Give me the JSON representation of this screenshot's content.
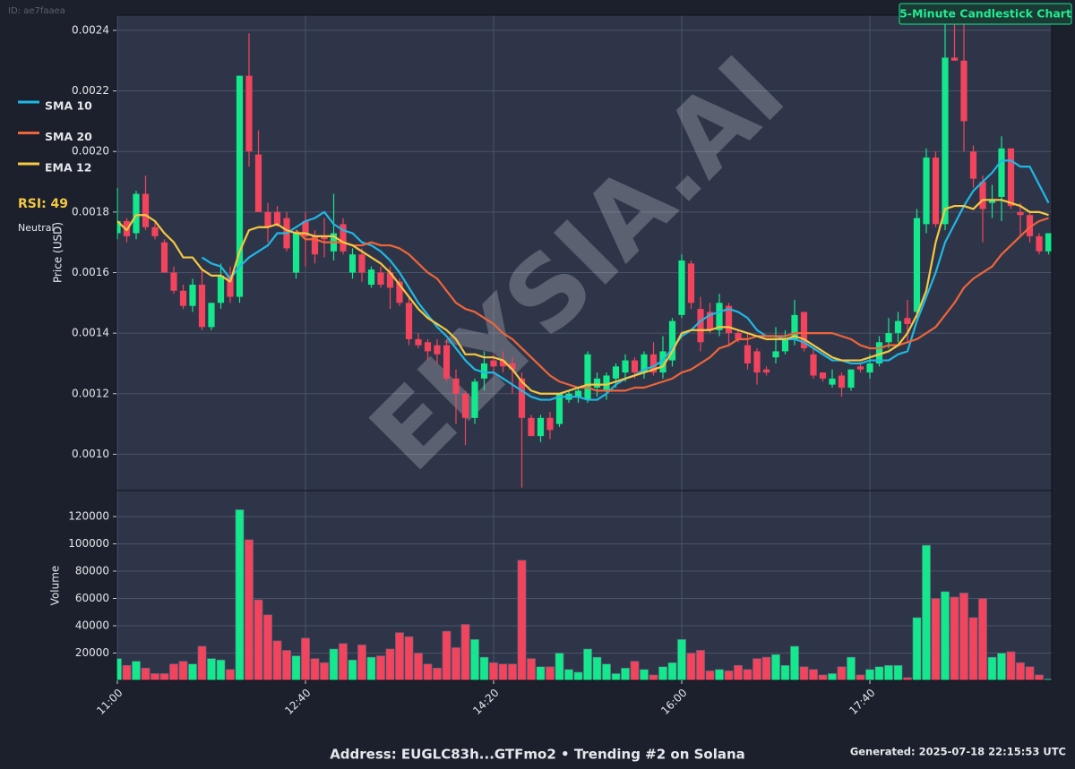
{
  "page": {
    "id_label": "ID: ae7faaea",
    "badge": "5-Minute Candlestick Chart",
    "watermark": "ELYSIA.AI",
    "rsi_label": "RSI: 49",
    "rsi_state": "Neutral",
    "footer": "Address: EUGLC83h...GTFmo2 • Trending #2 on Solana",
    "generated": "Generated: 2025-07-18 22:15:53 UTC"
  },
  "chart_data": [
    {
      "type": "candlestick",
      "y_label": "Price (USD)",
      "categories": [
        "11:00",
        null,
        null,
        null,
        null,
        null,
        null,
        null,
        null,
        null,
        null,
        null,
        null,
        null,
        null,
        null,
        null,
        null,
        null,
        null,
        "12:40",
        null,
        null,
        null,
        null,
        null,
        null,
        null,
        null,
        null,
        null,
        null,
        null,
        null,
        null,
        null,
        null,
        null,
        null,
        null,
        "14:20",
        null,
        null,
        null,
        null,
        null,
        null,
        null,
        null,
        null,
        null,
        null,
        null,
        null,
        null,
        null,
        null,
        null,
        null,
        null,
        "16:00",
        null,
        null,
        null,
        null,
        null,
        null,
        null,
        null,
        null,
        null,
        null,
        null,
        null,
        null,
        null,
        null,
        null,
        null,
        null,
        "17:40",
        null,
        null,
        null,
        null,
        null,
        null,
        null,
        null,
        null,
        null,
        null,
        null,
        null,
        null,
        null,
        null,
        null,
        null,
        null
      ],
      "open": [
        0.00173,
        0.00177,
        0.00173,
        0.00186,
        0.00175,
        0.0017,
        0.0016,
        0.00154,
        0.00149,
        0.00156,
        0.00142,
        0.0015,
        0.00159,
        0.00152,
        0.00225,
        0.00199,
        0.0018,
        0.0018,
        0.00178,
        0.0016,
        0.00177,
        0.00172,
        0.00172,
        0.00167,
        0.00176,
        0.0016,
        0.00166,
        0.00156,
        0.0016,
        0.0016,
        0.00157,
        0.0015,
        0.00138,
        0.00137,
        0.00136,
        0.00136,
        0.00125,
        0.0012,
        0.00112,
        0.00125,
        0.00131,
        0.00131,
        0.0013,
        0.00125,
        0.00112,
        0.00106,
        0.00112,
        0.0011,
        0.00118,
        0.00119,
        0.00118,
        0.00122,
        0.00121,
        0.00125,
        0.00127,
        0.00131,
        0.00127,
        0.00133,
        0.00127,
        0.00131,
        0.00146,
        0.00163,
        0.00148,
        0.00147,
        0.00141,
        0.00149,
        0.0014,
        0.00136,
        0.00134,
        0.00128,
        0.00132,
        0.00134,
        0.00138,
        0.00147,
        0.00133,
        0.00127,
        0.00123,
        0.00126,
        0.00122,
        0.00129,
        0.00127,
        0.0013,
        0.00137,
        0.0014,
        0.00145,
        0.00147,
        0.00176,
        0.00198,
        0.00176,
        0.00231,
        0.0023,
        0.002,
        0.0019,
        0.00183,
        0.00185,
        0.00201,
        0.0018,
        0.00179,
        0.00172,
        0.00167
      ],
      "high": [
        0.00188,
        0.00178,
        0.00187,
        0.00192,
        0.00177,
        0.00171,
        0.00162,
        0.00156,
        0.00158,
        0.00161,
        0.0015,
        0.00163,
        0.00162,
        0.00225,
        0.00239,
        0.00207,
        0.00183,
        0.00182,
        0.0018,
        0.00174,
        0.0018,
        0.00174,
        0.00178,
        0.00186,
        0.00178,
        0.00168,
        0.00168,
        0.00162,
        0.00162,
        0.00162,
        0.00158,
        0.00152,
        0.0014,
        0.00138,
        0.00138,
        0.00138,
        0.00128,
        0.00121,
        0.00125,
        0.00134,
        0.00133,
        0.00134,
        0.00132,
        0.00127,
        0.00113,
        0.00113,
        0.00114,
        0.0012,
        0.00121,
        0.00122,
        0.00134,
        0.00127,
        0.00127,
        0.0013,
        0.00133,
        0.00132,
        0.00134,
        0.00137,
        0.00139,
        0.00145,
        0.00166,
        0.00164,
        0.00152,
        0.0015,
        0.00153,
        0.0015,
        0.00141,
        0.0014,
        0.00135,
        0.00129,
        0.00142,
        0.00141,
        0.00151,
        0.00147,
        0.00135,
        0.00127,
        0.00128,
        0.00127,
        0.00128,
        0.0013,
        0.00133,
        0.00139,
        0.00145,
        0.00147,
        0.00151,
        0.00181,
        0.00201,
        0.002,
        0.00244,
        0.00252,
        0.00242,
        0.00202,
        0.00192,
        0.00189,
        0.00205,
        0.00201,
        0.00183,
        0.0018,
        0.00173,
        0.00173
      ],
      "low": [
        0.00171,
        0.0017,
        0.00171,
        0.00174,
        0.00171,
        0.0016,
        0.00153,
        0.00148,
        0.00147,
        0.00141,
        0.00141,
        0.00148,
        0.0015,
        0.0015,
        0.00195,
        0.0018,
        0.0017,
        0.00175,
        0.00167,
        0.00158,
        0.00162,
        0.00163,
        0.00165,
        0.00164,
        0.00166,
        0.00158,
        0.00157,
        0.00155,
        0.00155,
        0.00148,
        0.00149,
        0.00136,
        0.00135,
        0.00131,
        0.0013,
        0.00124,
        0.0011,
        0.00103,
        0.0011,
        0.00121,
        0.00126,
        0.00127,
        0.0012,
        0.00089,
        0.00106,
        0.00104,
        0.00105,
        0.00109,
        0.00117,
        0.00117,
        0.00117,
        0.00119,
        0.00118,
        0.00122,
        0.00124,
        0.00125,
        0.00125,
        0.00126,
        0.00125,
        0.00129,
        0.00145,
        0.00148,
        0.00134,
        0.0014,
        0.00139,
        0.00136,
        0.00137,
        0.00128,
        0.00123,
        0.00126,
        0.0013,
        0.00133,
        0.00136,
        0.00134,
        0.00125,
        0.00124,
        0.00122,
        0.00119,
        0.00121,
        0.00127,
        0.00125,
        0.00129,
        0.00135,
        0.00137,
        0.00137,
        0.00145,
        0.00173,
        0.00175,
        0.00174,
        0.0023,
        0.002,
        0.00188,
        0.0017,
        0.00178,
        0.00177,
        0.00181,
        0.00172,
        0.0017,
        0.00166,
        0.00166
      ],
      "close": [
        0.00177,
        0.00172,
        0.00186,
        0.00175,
        0.00172,
        0.0016,
        0.00154,
        0.00149,
        0.00156,
        0.00142,
        0.0015,
        0.00159,
        0.00152,
        0.00225,
        0.002,
        0.0018,
        0.00175,
        0.00176,
        0.00168,
        0.00173,
        0.00172,
        0.00166,
        0.00171,
        0.00173,
        0.00167,
        0.00166,
        0.0016,
        0.00161,
        0.00156,
        0.00155,
        0.0015,
        0.00138,
        0.00136,
        0.00134,
        0.00133,
        0.00125,
        0.0012,
        0.00112,
        0.00124,
        0.0013,
        0.00129,
        0.00129,
        0.00128,
        0.00112,
        0.00106,
        0.00112,
        0.00108,
        0.0012,
        0.0012,
        0.00121,
        0.00133,
        0.00125,
        0.00126,
        0.00129,
        0.00131,
        0.00127,
        0.00133,
        0.00127,
        0.00134,
        0.00144,
        0.00164,
        0.0015,
        0.00137,
        0.00141,
        0.0015,
        0.0014,
        0.00138,
        0.0013,
        0.00127,
        0.00127,
        0.00134,
        0.00138,
        0.00146,
        0.00135,
        0.00126,
        0.00125,
        0.00125,
        0.00122,
        0.00128,
        0.00128,
        0.0013,
        0.00137,
        0.0014,
        0.00144,
        0.00143,
        0.00178,
        0.00198,
        0.00176,
        0.00231,
        0.0023,
        0.0021,
        0.00191,
        0.00181,
        0.00184,
        0.00201,
        0.00182,
        0.00179,
        0.00172,
        0.00167,
        0.00173
      ],
      "up_color": "#14e88c",
      "down_color": "#f2445c",
      "series": [
        {
          "name": "SMA 10",
          "color": "#1fb8e4",
          "values": [
            null,
            null,
            null,
            null,
            null,
            null,
            null,
            null,
            null,
            0.00165,
            0.00163,
            0.00162,
            0.00158,
            0.00162,
            0.00165,
            0.00167,
            0.00169,
            0.00173,
            0.00173,
            0.00175,
            0.00177,
            0.00178,
            0.0018,
            0.00176,
            0.00174,
            0.00173,
            0.0017,
            0.00169,
            0.00167,
            0.00164,
            0.0016,
            0.00155,
            0.0015,
            0.00146,
            0.00142,
            0.00139,
            0.00135,
            0.00131,
            0.00128,
            0.00127,
            0.00127,
            0.00125,
            0.00123,
            0.00121,
            0.00119,
            0.00118,
            0.00118,
            0.00119,
            0.00119,
            0.00119,
            0.00118,
            0.00118,
            0.0012,
            0.00123,
            0.00125,
            0.00126,
            0.00128,
            0.00129,
            0.00131,
            0.00135,
            0.00139,
            0.00141,
            0.00144,
            0.00146,
            0.00147,
            0.00148,
            0.00147,
            0.00145,
            0.00141,
            0.00139,
            0.00139,
            0.00138,
            0.00138,
            0.00137,
            0.00135,
            0.00133,
            0.00131,
            0.00131,
            0.0013,
            0.0013,
            0.00131,
            0.00131,
            0.00131,
            0.00133,
            0.00134,
            0.00144,
            0.00152,
            0.0016,
            0.0017,
            0.00176,
            0.00182,
            0.00187,
            0.0019,
            0.00193,
            0.00197,
            0.00197,
            0.00195,
            0.00195,
            0.00189,
            0.00183
          ]
        },
        {
          "name": "SMA 20",
          "color": "#f0643a",
          "values": [
            null,
            null,
            null,
            null,
            null,
            null,
            null,
            null,
            null,
            null,
            null,
            null,
            null,
            null,
            null,
            null,
            null,
            null,
            null,
            0.00174,
            0.00171,
            0.00171,
            0.0017,
            0.0017,
            0.0017,
            0.00169,
            0.00169,
            0.0017,
            0.00169,
            0.00169,
            0.00168,
            0.00166,
            0.00163,
            0.0016,
            0.00158,
            0.00154,
            0.0015,
            0.00148,
            0.00147,
            0.00145,
            0.00143,
            0.0014,
            0.00138,
            0.00135,
            0.00132,
            0.00129,
            0.00126,
            0.00124,
            0.00123,
            0.00122,
            0.00122,
            0.00121,
            0.00121,
            0.00121,
            0.00121,
            0.00122,
            0.00122,
            0.00123,
            0.00124,
            0.00125,
            0.00127,
            0.00128,
            0.0013,
            0.00132,
            0.00135,
            0.00136,
            0.00138,
            0.00138,
            0.00139,
            0.00139,
            0.00139,
            0.00139,
            0.0014,
            0.0014,
            0.0014,
            0.0014,
            0.0014,
            0.00139,
            0.00138,
            0.00136,
            0.00135,
            0.00135,
            0.00136,
            0.00136,
            0.00137,
            0.00138,
            0.0014,
            0.00142,
            0.00146,
            0.0015,
            0.00155,
            0.00158,
            0.0016,
            0.00162,
            0.00166,
            0.00169,
            0.00172,
            0.00175,
            0.00177,
            0.00178
          ]
        },
        {
          "name": "EMA 12",
          "color": "#f5c842",
          "values": [
            0.00177,
            0.00174,
            0.00179,
            0.00179,
            0.00177,
            0.00173,
            0.0017,
            0.00165,
            0.00165,
            0.00161,
            0.00159,
            0.00159,
            0.00157,
            0.00167,
            0.00174,
            0.00175,
            0.00175,
            0.00176,
            0.00174,
            0.00173,
            0.00173,
            0.00172,
            0.00172,
            0.00172,
            0.0017,
            0.00169,
            0.00167,
            0.00165,
            0.00163,
            0.0016,
            0.00156,
            0.00152,
            0.00148,
            0.00145,
            0.00143,
            0.00141,
            0.00138,
            0.00133,
            0.00133,
            0.00132,
            0.00132,
            0.00131,
            0.00128,
            0.00124,
            0.00121,
            0.0012,
            0.0012,
            0.0012,
            0.00121,
            0.00122,
            0.00123,
            0.00123,
            0.00123,
            0.00124,
            0.00125,
            0.00126,
            0.00127,
            0.00128,
            0.00129,
            0.00134,
            0.0014,
            0.00141,
            0.00141,
            0.00141,
            0.00142,
            0.00142,
            0.00141,
            0.0014,
            0.00139,
            0.00138,
            0.00138,
            0.00138,
            0.00139,
            0.00138,
            0.00136,
            0.00134,
            0.00132,
            0.00131,
            0.00131,
            0.00131,
            0.00132,
            0.00133,
            0.00134,
            0.00136,
            0.0014,
            0.00146,
            0.00154,
            0.0017,
            0.00181,
            0.00182,
            0.00182,
            0.00181,
            0.00184,
            0.00184,
            0.00184,
            0.00183,
            0.00182,
            0.0018,
            0.0018,
            0.00179
          ]
        }
      ],
      "ylim": [
        0.00088,
        0.00245
      ],
      "yticks": [
        {
          "value": 0.001,
          "label": "0.0010"
        },
        {
          "value": 0.0012,
          "label": "0.0012"
        },
        {
          "value": 0.0014,
          "label": "0.0014"
        },
        {
          "value": 0.0016,
          "label": "0.0016"
        },
        {
          "value": 0.0018,
          "label": "0.0018"
        },
        {
          "value": 0.002,
          "label": "0.0020"
        },
        {
          "value": 0.0022,
          "label": "0.0022"
        },
        {
          "value": 0.0024,
          "label": "0.0024"
        }
      ],
      "grid": true
    },
    {
      "type": "bar",
      "y_label": "Volume",
      "values": [
        16000,
        11000,
        14000,
        9000,
        5000,
        5000,
        12000,
        14000,
        12000,
        25000,
        16000,
        15000,
        8000,
        125000,
        103000,
        59000,
        48000,
        29000,
        22000,
        18000,
        31000,
        16000,
        13000,
        23000,
        27000,
        15000,
        26000,
        17000,
        18000,
        23000,
        35000,
        32000,
        20000,
        12000,
        9000,
        36000,
        24000,
        41000,
        30000,
        17000,
        13000,
        12000,
        12000,
        88000,
        16000,
        10000,
        10000,
        20000,
        8000,
        6000,
        23000,
        17000,
        12000,
        5000,
        9000,
        14000,
        8000,
        4000,
        10000,
        13000,
        30000,
        20000,
        22000,
        7000,
        8000,
        7000,
        11000,
        8000,
        16000,
        17000,
        19000,
        11000,
        25000,
        10000,
        8000,
        4000,
        5000,
        10000,
        17000,
        4000,
        8000,
        10000,
        11000,
        11000,
        2000,
        46000,
        99000,
        60000,
        65000,
        61000,
        64000,
        46000,
        60000,
        17000,
        20000,
        21000,
        13000,
        10000,
        4000,
        1000
      ],
      "up_color": "#14e88c",
      "down_color": "#f2445c",
      "ylim": [
        0,
        139000
      ],
      "yticks": [
        20000,
        40000,
        60000,
        80000,
        100000,
        120000
      ],
      "grid": true
    }
  ]
}
